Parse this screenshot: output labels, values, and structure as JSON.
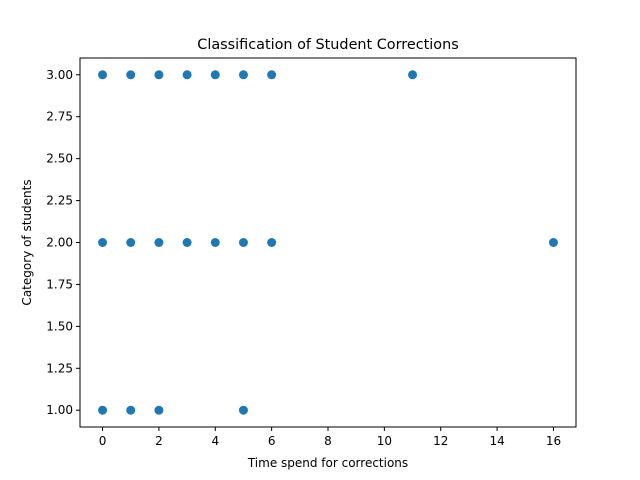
{
  "chart_data": {
    "type": "scatter",
    "title": "Classification of Student Corrections",
    "xlabel": "Time spend for corrections",
    "ylabel": "Category of students",
    "xlim": [
      -0.8,
      16.8
    ],
    "ylim": [
      0.9,
      3.1
    ],
    "x_ticks": [
      0,
      2,
      4,
      6,
      8,
      10,
      12,
      14,
      16
    ],
    "x_tick_labels": [
      "0",
      "2",
      "4",
      "6",
      "8",
      "10",
      "12",
      "14",
      "16"
    ],
    "y_ticks": [
      1.0,
      1.25,
      1.5,
      1.75,
      2.0,
      2.25,
      2.5,
      2.75,
      3.0
    ],
    "y_tick_labels": [
      "1.00",
      "1.25",
      "1.50",
      "1.75",
      "2.00",
      "2.25",
      "2.50",
      "2.75",
      "3.00"
    ],
    "grid": false,
    "marker_color": "#1f77b4",
    "series": [
      {
        "x": [
          0,
          1,
          2,
          3,
          4,
          5,
          6,
          11,
          0,
          1,
          2,
          3,
          4,
          5,
          6,
          16,
          0,
          1,
          2,
          5
        ],
        "y": [
          3,
          3,
          3,
          3,
          3,
          3,
          3,
          3,
          2,
          2,
          2,
          2,
          2,
          2,
          2,
          2,
          1,
          1,
          1,
          1
        ]
      }
    ]
  }
}
